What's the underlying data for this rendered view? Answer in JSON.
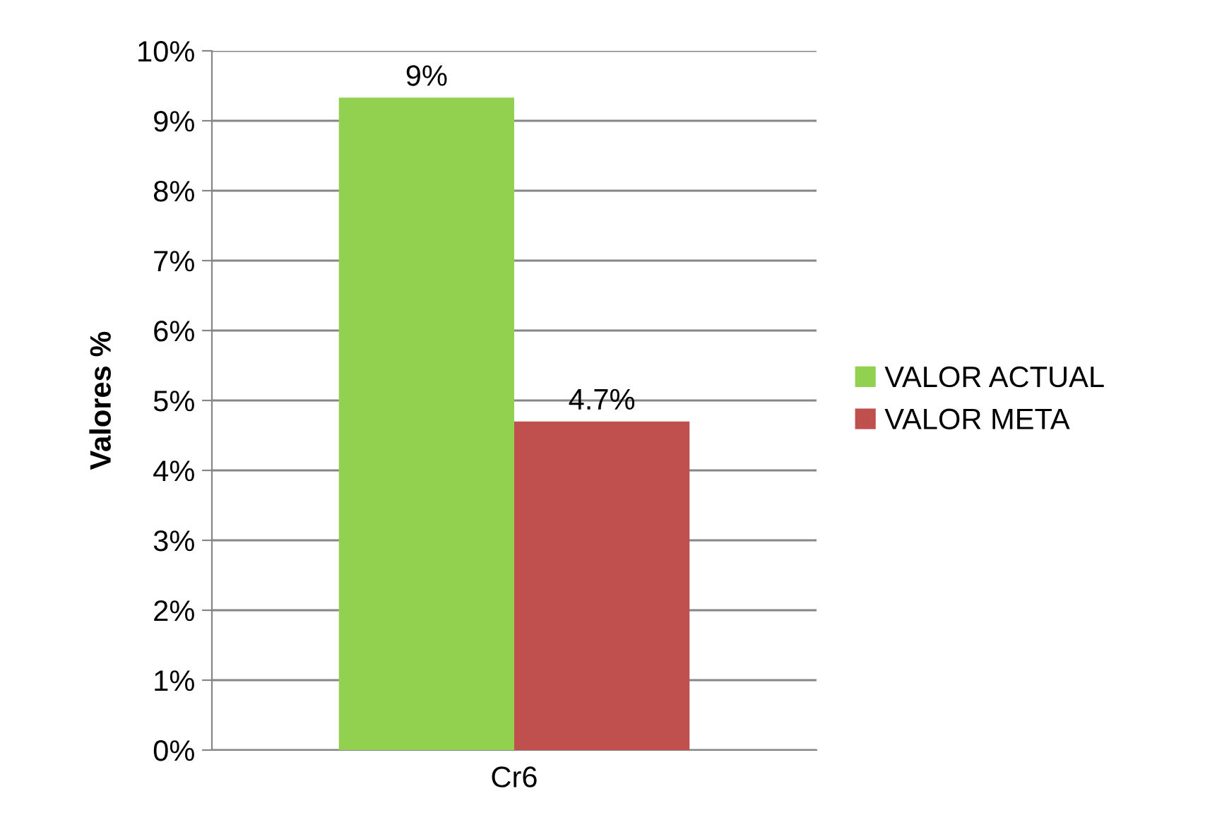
{
  "chart_data": {
    "type": "bar",
    "ylabel": "Valores %",
    "categories": [
      "Cr6"
    ],
    "series": [
      {
        "name": "VALOR ACTUAL",
        "color": "#92d050",
        "values": [
          9.33
        ],
        "value_labels": [
          "9%"
        ]
      },
      {
        "name": "VALOR META",
        "color": "#c0504d",
        "values": [
          4.7
        ],
        "value_labels": [
          "4.7%"
        ]
      }
    ],
    "ylim": [
      0,
      10
    ],
    "yticks": [
      {
        "value": 0,
        "label": "0%"
      },
      {
        "value": 1,
        "label": "1%"
      },
      {
        "value": 2,
        "label": "2%"
      },
      {
        "value": 3,
        "label": "3%"
      },
      {
        "value": 4,
        "label": "4%"
      },
      {
        "value": 5,
        "label": "5%"
      },
      {
        "value": 6,
        "label": "6%"
      },
      {
        "value": 7,
        "label": "7%"
      },
      {
        "value": 8,
        "label": "8%"
      },
      {
        "value": 9,
        "label": "9%"
      },
      {
        "value": 10,
        "label": "10%"
      }
    ],
    "grid": "y",
    "legend": "right"
  }
}
